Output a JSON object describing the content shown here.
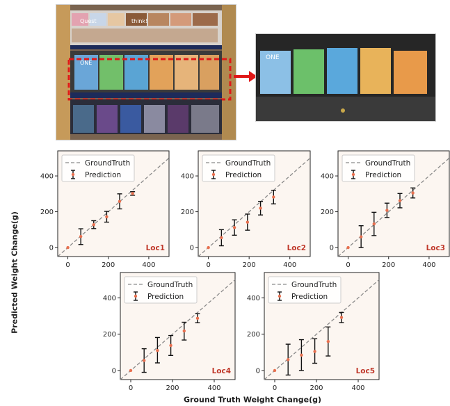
{
  "figure": {
    "xlabel": "Ground Truth Weight Change(g)",
    "ylabel": "Predicted Weight Change(g)",
    "colors": {
      "panel_bg": "#fcf6f1",
      "groundtruth": "#8a8a8a",
      "prediction_marker": "#e8704f",
      "errorbar": "#111111",
      "loc_label": "#c0392b",
      "highlight_box": "#e01818"
    }
  },
  "photos": {
    "left": {
      "description_icon": "store-shelf-photo",
      "brand_labels": [
        "Quest",
        "think!",
        "ONE"
      ]
    },
    "right": {
      "description_icon": "instrumented-shelf-photo",
      "brand_labels": [
        "ONE"
      ]
    },
    "arrow_icon": "red-arrow-icon"
  },
  "chart_data": [
    {
      "type": "scatter",
      "panel_label": "Loc1",
      "legend": [
        "GroundTruth",
        "Prediction"
      ],
      "legend_position": "top-left",
      "xlim": [
        -50,
        500
      ],
      "ylim": [
        -50,
        540
      ],
      "xticks": [
        "0",
        "200",
        "400"
      ],
      "yticks": [
        "0",
        "200",
        "400"
      ],
      "grid": false,
      "points": [
        {
          "x": 0,
          "y": 0,
          "err_lo": 0,
          "err_hi": 0
        },
        {
          "x": 64,
          "y": 62,
          "err_lo": 45,
          "err_hi": 43
        },
        {
          "x": 128,
          "y": 128,
          "err_lo": 22,
          "err_hi": 22
        },
        {
          "x": 192,
          "y": 172,
          "err_lo": 30,
          "err_hi": 30
        },
        {
          "x": 256,
          "y": 258,
          "err_lo": 42,
          "err_hi": 42
        },
        {
          "x": 320,
          "y": 302,
          "err_lo": 10,
          "err_hi": 10
        }
      ]
    },
    {
      "type": "scatter",
      "panel_label": "Loc2",
      "legend": [
        "GroundTruth",
        "Prediction"
      ],
      "legend_position": "top-left",
      "xlim": [
        -50,
        500
      ],
      "ylim": [
        -50,
        540
      ],
      "xticks": [
        "0",
        "200",
        "400"
      ],
      "yticks": [
        "0",
        "200",
        "400"
      ],
      "grid": false,
      "points": [
        {
          "x": 0,
          "y": 0,
          "err_lo": 0,
          "err_hi": 0
        },
        {
          "x": 64,
          "y": 55,
          "err_lo": 45,
          "err_hi": 45
        },
        {
          "x": 128,
          "y": 112,
          "err_lo": 43,
          "err_hi": 43
        },
        {
          "x": 192,
          "y": 142,
          "err_lo": 45,
          "err_hi": 45
        },
        {
          "x": 256,
          "y": 220,
          "err_lo": 38,
          "err_hi": 38
        },
        {
          "x": 320,
          "y": 282,
          "err_lo": 38,
          "err_hi": 38
        }
      ]
    },
    {
      "type": "scatter",
      "panel_label": "Loc3",
      "legend": [
        "GroundTruth",
        "Prediction"
      ],
      "legend_position": "top-left",
      "xlim": [
        -50,
        500
      ],
      "ylim": [
        -50,
        540
      ],
      "xticks": [
        "0",
        "200",
        "400"
      ],
      "yticks": [
        "0",
        "200",
        "400"
      ],
      "grid": false,
      "points": [
        {
          "x": 0,
          "y": 0,
          "err_lo": 0,
          "err_hi": 0
        },
        {
          "x": 64,
          "y": 60,
          "err_lo": 60,
          "err_hi": 62
        },
        {
          "x": 128,
          "y": 132,
          "err_lo": 65,
          "err_hi": 65
        },
        {
          "x": 192,
          "y": 208,
          "err_lo": 40,
          "err_hi": 40
        },
        {
          "x": 256,
          "y": 262,
          "err_lo": 40,
          "err_hi": 40
        },
        {
          "x": 320,
          "y": 305,
          "err_lo": 28,
          "err_hi": 28
        }
      ]
    },
    {
      "type": "scatter",
      "panel_label": "Loc4",
      "legend": [
        "GroundTruth",
        "Prediction"
      ],
      "legend_position": "top-left",
      "xlim": [
        -50,
        500
      ],
      "ylim": [
        -50,
        540
      ],
      "xticks": [
        "0",
        "200",
        "400"
      ],
      "yticks": [
        "0",
        "200",
        "400"
      ],
      "grid": false,
      "points": [
        {
          "x": 0,
          "y": 0,
          "err_lo": 0,
          "err_hi": 0
        },
        {
          "x": 64,
          "y": 55,
          "err_lo": 65,
          "err_hi": 65
        },
        {
          "x": 128,
          "y": 110,
          "err_lo": 68,
          "err_hi": 72
        },
        {
          "x": 192,
          "y": 138,
          "err_lo": 55,
          "err_hi": 55
        },
        {
          "x": 256,
          "y": 218,
          "err_lo": 50,
          "err_hi": 48
        },
        {
          "x": 320,
          "y": 288,
          "err_lo": 25,
          "err_hi": 25
        }
      ]
    },
    {
      "type": "scatter",
      "panel_label": "Loc5",
      "legend": [
        "GroundTruth",
        "Prediction"
      ],
      "legend_position": "top-left",
      "xlim": [
        -50,
        500
      ],
      "ylim": [
        -50,
        540
      ],
      "xticks": [
        "0",
        "200",
        "400"
      ],
      "yticks": [
        "0",
        "200",
        "400"
      ],
      "grid": false,
      "points": [
        {
          "x": 0,
          "y": 0,
          "err_lo": 0,
          "err_hi": 0
        },
        {
          "x": 64,
          "y": 60,
          "err_lo": 85,
          "err_hi": 85
        },
        {
          "x": 128,
          "y": 85,
          "err_lo": 85,
          "err_hi": 85
        },
        {
          "x": 192,
          "y": 105,
          "err_lo": 65,
          "err_hi": 70
        },
        {
          "x": 256,
          "y": 160,
          "err_lo": 80,
          "err_hi": 80
        },
        {
          "x": 320,
          "y": 292,
          "err_lo": 28,
          "err_hi": 28
        }
      ]
    }
  ]
}
